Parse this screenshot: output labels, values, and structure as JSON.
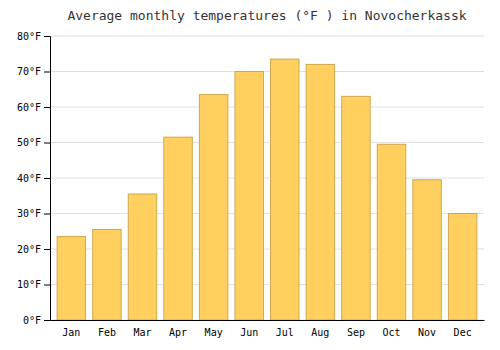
{
  "chart_data": {
    "type": "bar",
    "title": "Average monthly temperatures (°F ) in Novocherkassk",
    "categories": [
      "Jan",
      "Feb",
      "Mar",
      "Apr",
      "May",
      "Jun",
      "Jul",
      "Aug",
      "Sep",
      "Oct",
      "Nov",
      "Dec"
    ],
    "values": [
      23.5,
      25.5,
      35.5,
      51.5,
      63.5,
      70.0,
      73.5,
      72.0,
      63.0,
      49.5,
      39.5,
      30.0
    ],
    "color": "#FFD060",
    "ylim": [
      0,
      80
    ],
    "yticks": [
      {
        "value": 0,
        "label": "0°F"
      },
      {
        "value": 10,
        "label": "10°F"
      },
      {
        "value": 20,
        "label": "20°F"
      },
      {
        "value": 30,
        "label": "30°F"
      },
      {
        "value": 40,
        "label": "40°F"
      },
      {
        "value": 50,
        "label": "50°F"
      },
      {
        "value": 60,
        "label": "60°F"
      },
      {
        "value": 70,
        "label": "70°F"
      },
      {
        "value": 80,
        "label": "80°F"
      }
    ],
    "grid": true
  }
}
